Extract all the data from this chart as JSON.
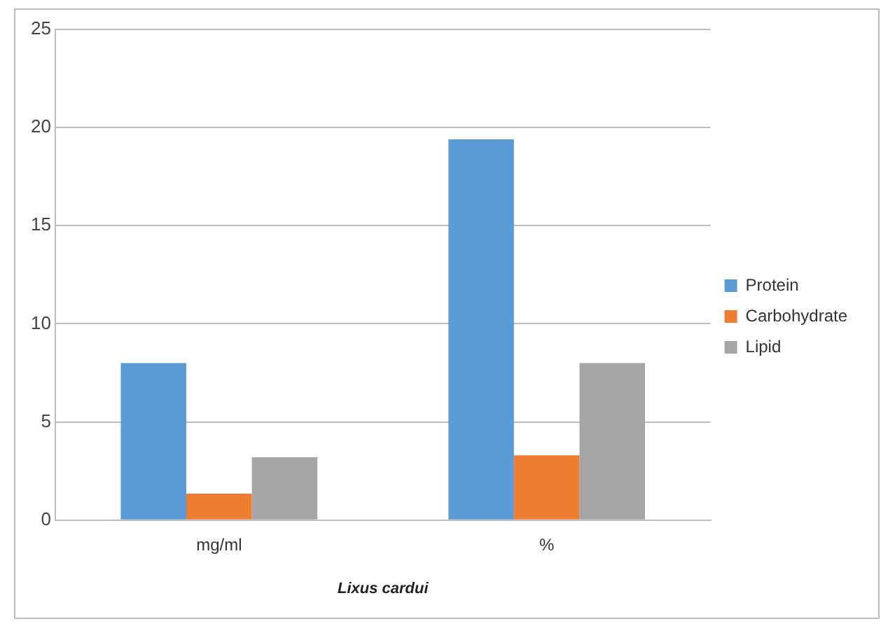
{
  "chart_data": {
    "type": "bar",
    "xlabel": "Lixus cardui",
    "categories": [
      "mg/ml",
      "%"
    ],
    "series": [
      {
        "name": "Protein",
        "color": "#5b9bd5",
        "values": [
          8.0,
          19.4
        ]
      },
      {
        "name": "Carbohydrate",
        "color": "#ed7d31",
        "values": [
          1.35,
          3.3
        ]
      },
      {
        "name": "Lipid",
        "color": "#a5a5a5",
        "values": [
          3.2,
          8.0
        ]
      }
    ],
    "ylim": [
      0,
      25
    ],
    "yticks": [
      0,
      5,
      10,
      15,
      20,
      25
    ],
    "grid": "y",
    "legend": "right"
  }
}
